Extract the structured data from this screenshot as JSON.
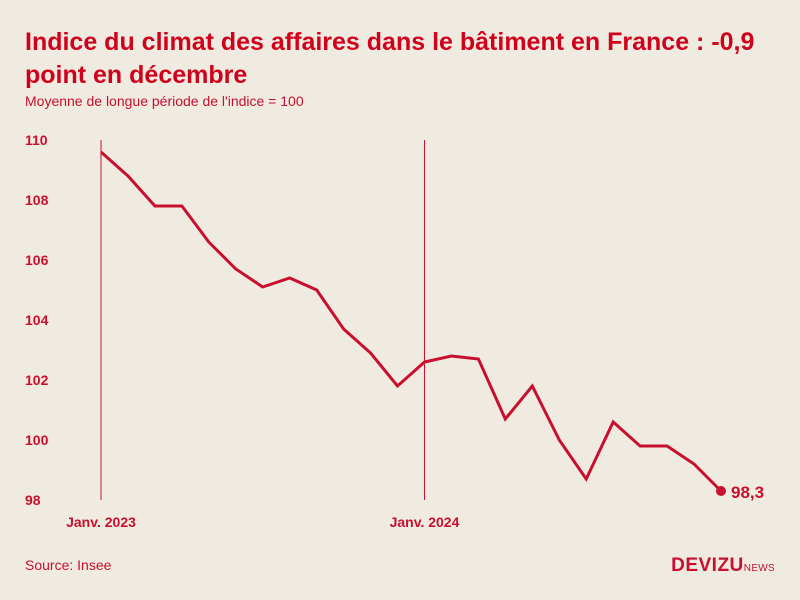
{
  "title": "Indice du climat des affaires dans le bâtiment en France : -0,9 point en décembre",
  "subtitle": "Moyenne de longue période de l'indice = 100",
  "source": "Source: Insee",
  "logo": {
    "main": "DEVIZU",
    "sub": "NEWS"
  },
  "colors": {
    "accent": "#c8102e",
    "background": "#f0ebe1"
  },
  "chart_data": {
    "type": "line",
    "title": "Indice du climat des affaires dans le bâtiment en France : -0,9 point en décembre",
    "subtitle": "Moyenne de longue période de l'indice = 100",
    "xlabel": "",
    "ylabel": "",
    "ylim": [
      98,
      110
    ],
    "yticks": [
      "110",
      "108",
      "106",
      "104",
      "102",
      "100",
      "98"
    ],
    "x": [
      "2023-01",
      "2023-02",
      "2023-03",
      "2023-04",
      "2023-05",
      "2023-06",
      "2023-07",
      "2023-08",
      "2023-09",
      "2023-10",
      "2023-11",
      "2023-12",
      "2024-01",
      "2024-02",
      "2024-03",
      "2024-04",
      "2024-05",
      "2024-06",
      "2024-07",
      "2024-08",
      "2024-09",
      "2024-10",
      "2024-11",
      "2024-12"
    ],
    "values": [
      109.6,
      108.8,
      107.8,
      107.8,
      106.6,
      105.7,
      105.1,
      105.4,
      105.0,
      103.7,
      102.9,
      101.8,
      102.6,
      102.8,
      102.7,
      100.7,
      101.8,
      100.0,
      98.7,
      100.6,
      99.8,
      99.8,
      99.2,
      98.3
    ],
    "markers": [
      {
        "x": "2023-01",
        "label": "Janv. 2023"
      },
      {
        "x": "2024-01",
        "label": "Janv. 2024"
      }
    ],
    "end_label": "98,3",
    "grid": false,
    "legend": "none"
  }
}
